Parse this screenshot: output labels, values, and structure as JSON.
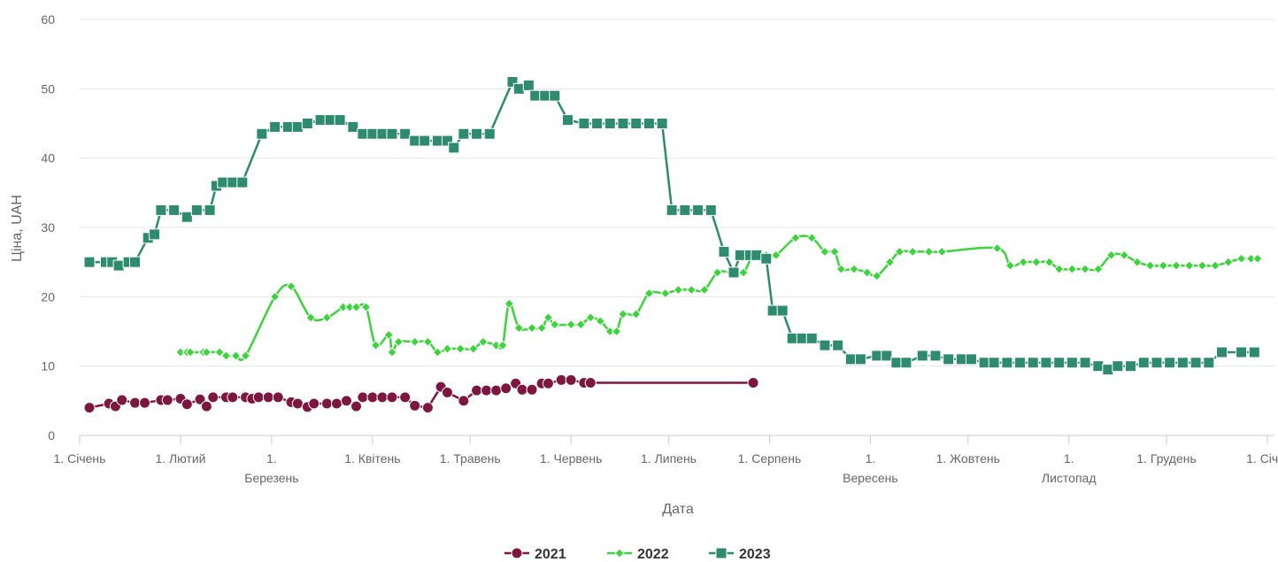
{
  "chart_data": {
    "type": "line",
    "title": "",
    "xlabel": "Дата",
    "ylabel": "Ціна, UAH",
    "ylim": [
      0,
      60
    ],
    "yticks": [
      0,
      10,
      20,
      30,
      40,
      50,
      60
    ],
    "xlim": [
      1,
      366
    ],
    "x_unit": "day of year",
    "xticks": [
      {
        "x": 1,
        "label": [
          "1. Січень"
        ]
      },
      {
        "x": 32,
        "label": [
          "1. Лютий"
        ]
      },
      {
        "x": 60,
        "label": [
          "1.",
          "Березень"
        ]
      },
      {
        "x": 91,
        "label": [
          "1. Квітень"
        ]
      },
      {
        "x": 121,
        "label": [
          "1. Травень"
        ]
      },
      {
        "x": 152,
        "label": [
          "1. Червень"
        ]
      },
      {
        "x": 182,
        "label": [
          "1. Липень"
        ]
      },
      {
        "x": 213,
        "label": [
          "1. Серпень"
        ]
      },
      {
        "x": 244,
        "label": [
          "1.",
          "Вересень"
        ]
      },
      {
        "x": 274,
        "label": [
          "1. Жовтень"
        ]
      },
      {
        "x": 305,
        "label": [
          "1.",
          "Листопад"
        ]
      },
      {
        "x": 335,
        "label": [
          "1. Грудень"
        ]
      },
      {
        "x": 366,
        "label": [
          "1. Січ..."
        ]
      }
    ],
    "grid": true,
    "legend_position": "bottom-center",
    "series": [
      {
        "name": "2021",
        "color": "#7c1740",
        "marker": "circle",
        "smooth": false,
        "points": [
          [
            4,
            4.0
          ],
          [
            10,
            4.6
          ],
          [
            12,
            4.2
          ],
          [
            14,
            5.1
          ],
          [
            18,
            4.7
          ],
          [
            21,
            4.7
          ],
          [
            26,
            5.1
          ],
          [
            28,
            5.1
          ],
          [
            32,
            5.3
          ],
          [
            34,
            4.5
          ],
          [
            38,
            5.2
          ],
          [
            40,
            4.2
          ],
          [
            42,
            5.5
          ],
          [
            46,
            5.5
          ],
          [
            48,
            5.5
          ],
          [
            52,
            5.5
          ],
          [
            54,
            5.3
          ],
          [
            56,
            5.5
          ],
          [
            59,
            5.5
          ],
          [
            62,
            5.5
          ],
          [
            66,
            4.8
          ],
          [
            68,
            4.6
          ],
          [
            71,
            4.1
          ],
          [
            73,
            4.6
          ],
          [
            77,
            4.6
          ],
          [
            80,
            4.6
          ],
          [
            83,
            5.0
          ],
          [
            86,
            4.2
          ],
          [
            88,
            5.5
          ],
          [
            91,
            5.5
          ],
          [
            94,
            5.5
          ],
          [
            97,
            5.5
          ],
          [
            101,
            5.5
          ],
          [
            104,
            4.3
          ],
          [
            108,
            4.0
          ],
          [
            112,
            7.0
          ],
          [
            114,
            6.2
          ],
          [
            119,
            5.0
          ],
          [
            123,
            6.5
          ],
          [
            126,
            6.5
          ],
          [
            129,
            6.5
          ],
          [
            132,
            6.8
          ],
          [
            135,
            7.5
          ],
          [
            137,
            6.6
          ],
          [
            140,
            6.6
          ],
          [
            143,
            7.5
          ],
          [
            145,
            7.5
          ],
          [
            149,
            8.0
          ],
          [
            152,
            8.0
          ],
          [
            156,
            7.6
          ],
          [
            158,
            7.6
          ],
          [
            208,
            7.6
          ]
        ]
      },
      {
        "name": "2022",
        "color": "#3cd33c",
        "marker": "diamond",
        "smooth": true,
        "points": [
          [
            32,
            12.0
          ],
          [
            34,
            12.0
          ],
          [
            35,
            12.0
          ],
          [
            39,
            12.0
          ],
          [
            40,
            12.0
          ],
          [
            44,
            12.0
          ],
          [
            46,
            11.5
          ],
          [
            49,
            11.5
          ],
          [
            52,
            11.5
          ],
          [
            61,
            20.0
          ],
          [
            66,
            21.5
          ],
          [
            72,
            17.0
          ],
          [
            77,
            17.0
          ],
          [
            82,
            18.5
          ],
          [
            84,
            18.5
          ],
          [
            86,
            18.5
          ],
          [
            89,
            18.5
          ],
          [
            92,
            13.0
          ],
          [
            96,
            14.5
          ],
          [
            97,
            12.0
          ],
          [
            99,
            13.5
          ],
          [
            104,
            13.5
          ],
          [
            108,
            13.5
          ],
          [
            111,
            12.0
          ],
          [
            114,
            12.5
          ],
          [
            118,
            12.5
          ],
          [
            122,
            12.5
          ],
          [
            125,
            13.5
          ],
          [
            129,
            13.0
          ],
          [
            131,
            13.0
          ],
          [
            133,
            19.0
          ],
          [
            136,
            15.5
          ],
          [
            140,
            15.5
          ],
          [
            143,
            15.5
          ],
          [
            145,
            17.0
          ],
          [
            147,
            16.0
          ],
          [
            152,
            16.0
          ],
          [
            155,
            16.0
          ],
          [
            158,
            17.0
          ],
          [
            161,
            16.5
          ],
          [
            164,
            15.0
          ],
          [
            166,
            15.0
          ],
          [
            168,
            17.5
          ],
          [
            172,
            17.5
          ],
          [
            176,
            20.5
          ],
          [
            181,
            20.5
          ],
          [
            185,
            21.0
          ],
          [
            189,
            21.0
          ],
          [
            193,
            21.0
          ],
          [
            197,
            23.5
          ],
          [
            201,
            23.5
          ],
          [
            205,
            23.5
          ],
          [
            208,
            26.0
          ],
          [
            212,
            26.0
          ],
          [
            215,
            26.0
          ],
          [
            221,
            28.5
          ],
          [
            226,
            28.5
          ],
          [
            230,
            26.5
          ],
          [
            233,
            26.5
          ],
          [
            235,
            24.0
          ],
          [
            239,
            24.0
          ],
          [
            243,
            23.5
          ],
          [
            246,
            23.0
          ],
          [
            250,
            25.0
          ],
          [
            253,
            26.5
          ],
          [
            257,
            26.5
          ],
          [
            262,
            26.5
          ],
          [
            266,
            26.5
          ],
          [
            283,
            27.0
          ],
          [
            287,
            24.5
          ],
          [
            291,
            25.0
          ],
          [
            295,
            25.0
          ],
          [
            299,
            25.0
          ],
          [
            302,
            24.0
          ],
          [
            306,
            24.0
          ],
          [
            310,
            24.0
          ],
          [
            314,
            24.0
          ],
          [
            318,
            26.0
          ],
          [
            322,
            26.0
          ],
          [
            326,
            25.0
          ],
          [
            330,
            24.5
          ],
          [
            334,
            24.5
          ],
          [
            338,
            24.5
          ],
          [
            342,
            24.5
          ],
          [
            346,
            24.5
          ],
          [
            350,
            24.5
          ],
          [
            354,
            25.0
          ],
          [
            358,
            25.5
          ],
          [
            361,
            25.5
          ],
          [
            363,
            25.5
          ]
        ]
      },
      {
        "name": "2023",
        "color": "#2e8b6e",
        "marker": "square",
        "smooth": false,
        "points": [
          [
            4,
            25.0
          ],
          [
            9,
            25.0
          ],
          [
            11,
            25.0
          ],
          [
            13,
            24.5
          ],
          [
            16,
            25.0
          ],
          [
            18,
            25.0
          ],
          [
            22,
            28.5
          ],
          [
            24,
            29.0
          ],
          [
            26,
            32.5
          ],
          [
            30,
            32.5
          ],
          [
            34,
            31.5
          ],
          [
            37,
            32.5
          ],
          [
            41,
            32.5
          ],
          [
            43,
            36.0
          ],
          [
            45,
            36.5
          ],
          [
            48,
            36.5
          ],
          [
            51,
            36.5
          ],
          [
            57,
            43.5
          ],
          [
            61,
            44.5
          ],
          [
            65,
            44.5
          ],
          [
            68,
            44.5
          ],
          [
            71,
            45.0
          ],
          [
            75,
            45.5
          ],
          [
            78,
            45.5
          ],
          [
            81,
            45.5
          ],
          [
            85,
            44.5
          ],
          [
            88,
            43.5
          ],
          [
            91,
            43.5
          ],
          [
            94,
            43.5
          ],
          [
            97,
            43.5
          ],
          [
            101,
            43.5
          ],
          [
            104,
            42.5
          ],
          [
            107,
            42.5
          ],
          [
            111,
            42.5
          ],
          [
            114,
            42.5
          ],
          [
            116,
            41.5
          ],
          [
            119,
            43.5
          ],
          [
            123,
            43.5
          ],
          [
            127,
            43.5
          ],
          [
            134,
            51.0
          ],
          [
            136,
            50.0
          ],
          [
            139,
            50.5
          ],
          [
            141,
            49.0
          ],
          [
            144,
            49.0
          ],
          [
            147,
            49.0
          ],
          [
            151,
            45.5
          ],
          [
            156,
            45.0
          ],
          [
            160,
            45.0
          ],
          [
            164,
            45.0
          ],
          [
            168,
            45.0
          ],
          [
            172,
            45.0
          ],
          [
            176,
            45.0
          ],
          [
            180,
            45.0
          ],
          [
            183,
            32.5
          ],
          [
            187,
            32.5
          ],
          [
            191,
            32.5
          ],
          [
            195,
            32.5
          ],
          [
            199,
            26.5
          ],
          [
            202,
            23.5
          ],
          [
            204,
            26.0
          ],
          [
            207,
            26.0
          ],
          [
            209,
            26.0
          ],
          [
            212,
            25.5
          ],
          [
            214,
            18.0
          ],
          [
            217,
            18.0
          ],
          [
            220,
            14.0
          ],
          [
            223,
            14.0
          ],
          [
            226,
            14.0
          ],
          [
            230,
            13.0
          ],
          [
            234,
            13.0
          ],
          [
            238,
            11.0
          ],
          [
            241,
            11.0
          ],
          [
            246,
            11.5
          ],
          [
            249,
            11.5
          ],
          [
            252,
            10.5
          ],
          [
            255,
            10.5
          ],
          [
            260,
            11.5
          ],
          [
            264,
            11.5
          ],
          [
            268,
            11.0
          ],
          [
            272,
            11.0
          ],
          [
            275,
            11.0
          ],
          [
            279,
            10.5
          ],
          [
            282,
            10.5
          ],
          [
            286,
            10.5
          ],
          [
            290,
            10.5
          ],
          [
            294,
            10.5
          ],
          [
            298,
            10.5
          ],
          [
            302,
            10.5
          ],
          [
            306,
            10.5
          ],
          [
            310,
            10.5
          ],
          [
            314,
            10.0
          ],
          [
            317,
            9.5
          ],
          [
            320,
            10.0
          ],
          [
            324,
            10.0
          ],
          [
            328,
            10.5
          ],
          [
            332,
            10.5
          ],
          [
            336,
            10.5
          ],
          [
            340,
            10.5
          ],
          [
            344,
            10.5
          ],
          [
            348,
            10.5
          ],
          [
            352,
            12.0
          ],
          [
            358,
            12.0
          ],
          [
            362,
            12.0
          ]
        ]
      }
    ]
  }
}
